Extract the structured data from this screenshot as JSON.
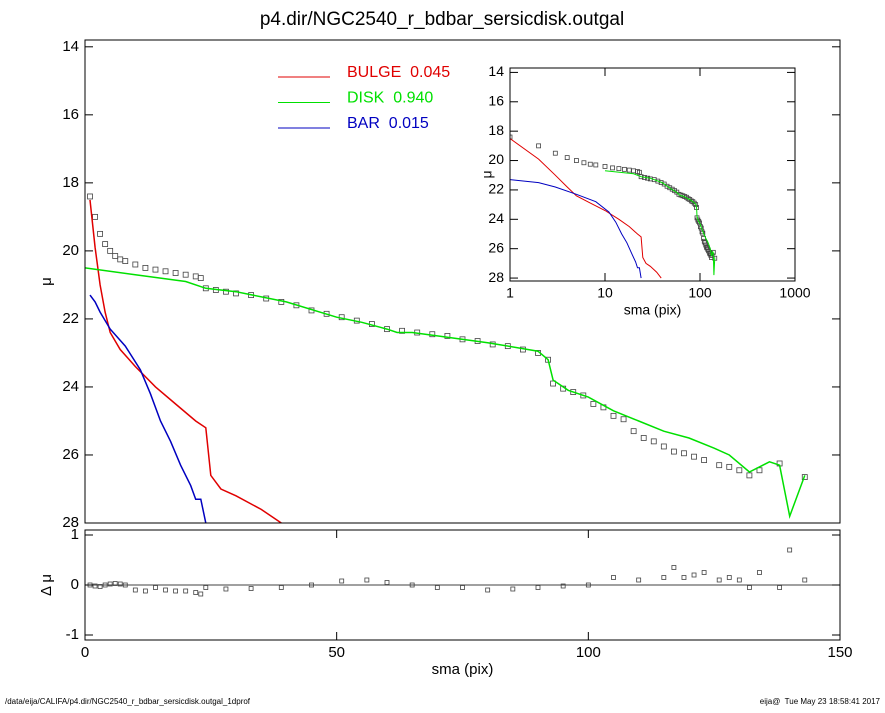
{
  "title": "p4.dir/NGC2540_r_bdbar_sersicdisk.outgal",
  "footer": {
    "left": "/data/eija/CALIFA/p4.dir/NGC2540_r_bdbar_sersicdisk.outgal_1dprof",
    "right": "eija@  Tue May 23 18:58:41 2017"
  },
  "chart_data": [
    {
      "type": "line",
      "ylabel": "μ",
      "x": [
        1,
        2,
        3,
        4,
        5,
        6,
        7,
        8,
        10,
        12,
        14,
        16,
        18,
        20,
        22,
        23,
        24,
        26,
        28,
        30,
        33,
        36,
        39,
        42,
        45,
        48,
        51,
        54,
        57,
        60,
        63,
        66,
        69,
        72,
        75,
        78,
        81,
        84,
        87,
        90,
        92,
        93,
        95,
        97,
        99,
        101,
        103,
        105,
        107,
        109,
        111,
        113,
        115,
        117,
        119,
        121,
        123,
        126,
        128,
        130,
        132,
        134,
        138,
        143
      ],
      "values": [
        18.4,
        19.0,
        19.5,
        19.8,
        20.0,
        20.15,
        20.25,
        20.3,
        20.4,
        20.5,
        20.55,
        20.6,
        20.65,
        20.7,
        20.75,
        20.8,
        21.1,
        21.15,
        21.2,
        21.25,
        21.3,
        21.4,
        21.5,
        21.6,
        21.75,
        21.85,
        21.95,
        22.05,
        22.15,
        22.3,
        22.35,
        22.4,
        22.45,
        22.5,
        22.6,
        22.65,
        22.75,
        22.8,
        22.9,
        23.0,
        23.2,
        23.9,
        24.05,
        24.15,
        24.25,
        24.5,
        24.6,
        24.85,
        24.95,
        25.3,
        25.5,
        25.6,
        25.75,
        25.9,
        25.95,
        26.05,
        26.15,
        26.3,
        26.35,
        26.45,
        26.6,
        26.45,
        26.25,
        26.65
      ],
      "series": [
        {
          "name": "BULGE  0.045",
          "color": "#e00000",
          "x": [
            1,
            2,
            3,
            4,
            5,
            7,
            10,
            14,
            18,
            22,
            24,
            25,
            27,
            30,
            35,
            39
          ],
          "values": [
            18.5,
            19.9,
            21.0,
            21.8,
            22.4,
            22.9,
            23.4,
            24.0,
            24.5,
            25.0,
            25.2,
            26.6,
            27.0,
            27.2,
            27.6,
            28.0
          ]
        },
        {
          "name": "DISK  0.940",
          "color": "#00e000",
          "x": [
            0,
            10,
            20,
            24,
            30,
            40,
            50,
            55,
            60,
            62,
            65,
            70,
            80,
            90,
            92,
            93,
            96,
            100,
            105,
            110,
            115,
            120,
            125,
            128,
            132,
            136,
            138,
            140,
            143
          ],
          "values": [
            20.5,
            20.7,
            20.9,
            21.1,
            21.2,
            21.5,
            21.95,
            22.1,
            22.3,
            22.4,
            22.4,
            22.5,
            22.7,
            22.95,
            23.2,
            23.8,
            24.1,
            24.3,
            24.7,
            25.0,
            25.3,
            25.5,
            25.8,
            26.0,
            26.5,
            26.2,
            26.3,
            27.8,
            26.6
          ]
        },
        {
          "name": "BAR  0.015",
          "color": "#0000c0",
          "x": [
            1,
            2,
            3,
            5,
            8,
            11,
            13,
            15,
            17,
            19,
            21,
            22,
            23,
            24
          ],
          "values": [
            21.3,
            21.5,
            21.8,
            22.3,
            22.8,
            23.5,
            24.2,
            25.0,
            25.6,
            26.3,
            26.9,
            27.3,
            27.3,
            28.0
          ]
        }
      ],
      "xlim": [
        0,
        150
      ],
      "ylim": [
        28,
        13.8
      ],
      "yticks": [
        14,
        16,
        18,
        20,
        22,
        24,
        26,
        28
      ]
    },
    {
      "type": "scatter",
      "xlabel": "sma (pix)",
      "ylabel": "Δ μ",
      "x": [
        1,
        2,
        3,
        4,
        5,
        6,
        7,
        8,
        10,
        12,
        14,
        16,
        18,
        20,
        22,
        23,
        24,
        28,
        33,
        39,
        45,
        51,
        56,
        60,
        65,
        70,
        75,
        80,
        85,
        90,
        95,
        100,
        105,
        110,
        115,
        117,
        119,
        121,
        123,
        126,
        128,
        130,
        132,
        134,
        138,
        140,
        143
      ],
      "values": [
        0,
        -0.02,
        -0.03,
        0,
        0.02,
        0.03,
        0.02,
        0,
        -0.1,
        -0.12,
        -0.05,
        -0.1,
        -0.12,
        -0.12,
        -0.15,
        -0.18,
        -0.05,
        -0.08,
        -0.07,
        -0.05,
        0.0,
        0.08,
        0.1,
        0.05,
        0,
        -0.05,
        -0.05,
        -0.1,
        -0.08,
        -0.05,
        -0.02,
        0.0,
        0.15,
        0.1,
        0.15,
        0.35,
        0.15,
        0.2,
        0.25,
        0.1,
        0.15,
        0.1,
        -0.05,
        0.25,
        -0.05,
        0.7,
        0.1
      ],
      "xlim": [
        0,
        150
      ],
      "ylim": [
        -1.1,
        1.1
      ],
      "xticks": [
        0,
        50,
        100,
        150
      ],
      "yticks": [
        -1,
        0,
        1
      ]
    },
    {
      "type": "log-inset",
      "xlabel": "sma (pix)",
      "ylabel": "μ",
      "xlim": [
        1,
        1000
      ],
      "ylim": [
        28.2,
        13.7
      ],
      "xticks": [
        1,
        10,
        100,
        1000
      ],
      "yticks": [
        14,
        16,
        18,
        20,
        22,
        24,
        26,
        28
      ],
      "log_x": true
    }
  ]
}
